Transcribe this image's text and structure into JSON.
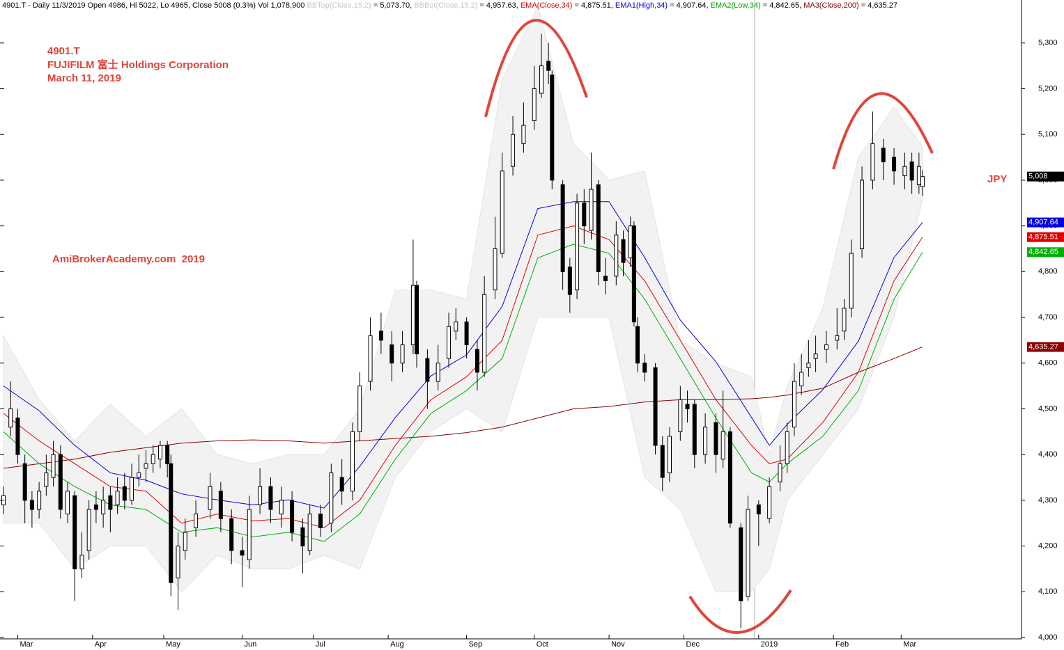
{
  "chart_data": {
    "type": "candlestick",
    "header": [
      {
        "text": "4901.T - Daily 11/3/2019 Open 4986, Hi 5022, Lo 4965, Close 5008 (0.3%) Vol 1,078,900 ",
        "color": "#000000"
      },
      {
        "text": "BBTop(Close,15,2)",
        "color": "#c8c8c8"
      },
      {
        "text": " = 5,073.70, ",
        "color": "#000000"
      },
      {
        "text": "BBBot(Close,15,2)",
        "color": "#c8c8c8"
      },
      {
        "text": " = 4,957.63, ",
        "color": "#000000"
      },
      {
        "text": "EMA(Close,34)",
        "color": "#e00000"
      },
      {
        "text": " = 4,875.51, ",
        "color": "#000000"
      },
      {
        "text": "EMA1(High,34)",
        "color": "#0000e0"
      },
      {
        "text": " = 4,907.64, ",
        "color": "#000000"
      },
      {
        "text": "EMA2(Low,34)",
        "color": "#00a000"
      },
      {
        "text": " = 4,842.65, ",
        "color": "#000000"
      },
      {
        "text": "MA3(Close,200)",
        "color": "#8b0000"
      },
      {
        "text": " = 4,635.27",
        "color": "#000000"
      }
    ],
    "annotations": [
      "4901.T",
      "FUJIFILM 富士 Holdings Corporation",
      "March 11, 2019",
      "AmiBrokerAcademy.com  2019",
      "JPY"
    ],
    "xlim": [
      0,
      285
    ],
    "xticks": [
      {
        "value": 4,
        "label": "Mar"
      },
      {
        "value": 25,
        "label": "Apr"
      },
      {
        "value": 45,
        "label": "May"
      },
      {
        "value": 67,
        "label": "Jun"
      },
      {
        "value": 87,
        "label": "Jul"
      },
      {
        "value": 108,
        "label": "Aug"
      },
      {
        "value": 130,
        "label": "Sep"
      },
      {
        "value": 149,
        "label": "Oct"
      },
      {
        "value": 170,
        "label": "Nov"
      },
      {
        "value": 191,
        "label": "Dec"
      },
      {
        "value": 212,
        "label": "2019"
      },
      {
        "value": 233,
        "label": "Feb"
      },
      {
        "value": 252,
        "label": "Mar"
      }
    ],
    "ylim": [
      3997,
      5394
    ],
    "yticks": [
      {
        "value": 4000,
        "label": "4,000"
      },
      {
        "value": 4100,
        "label": "4,100"
      },
      {
        "value": 4200,
        "label": "4,200"
      },
      {
        "value": 4300,
        "label": "4,300"
      },
      {
        "value": 4400,
        "label": "4,400"
      },
      {
        "value": 4500,
        "label": "4,500"
      },
      {
        "value": 4600,
        "label": "4,600"
      },
      {
        "value": 4700,
        "label": "4,700"
      },
      {
        "value": 4800,
        "label": "4,800"
      },
      {
        "value": 4900,
        "label": "4,900"
      },
      {
        "value": 5000,
        "label": "5,000"
      },
      {
        "value": 5100,
        "label": "5,100"
      },
      {
        "value": 5200,
        "label": "5,200"
      },
      {
        "value": 5300,
        "label": "5,300"
      }
    ],
    "candles": {
      "x": [
        0,
        2,
        4,
        6,
        8,
        10,
        12,
        14,
        16,
        18,
        20,
        22,
        24,
        26,
        28,
        30,
        32,
        34,
        36,
        38,
        40,
        42,
        44,
        46,
        47,
        49,
        51,
        54,
        58,
        61,
        64,
        67,
        69,
        72,
        75,
        78,
        81,
        84,
        86,
        89,
        92,
        95,
        98,
        100,
        103,
        106,
        109,
        112,
        115,
        116,
        119,
        122,
        125,
        127,
        130,
        133,
        135,
        138,
        140,
        143,
        146,
        149,
        151,
        153,
        154,
        157,
        159,
        161,
        163,
        165,
        167,
        169,
        172,
        174,
        176,
        177,
        178,
        180,
        183,
        185,
        187,
        190,
        192,
        194,
        197,
        200,
        202,
        204,
        207,
        209,
        212,
        215,
        218,
        220,
        222,
        224,
        226,
        228,
        231,
        234,
        236,
        238,
        241,
        244,
        247,
        250,
        253,
        255,
        257,
        258
      ],
      "open": [
        4290,
        4460,
        4480,
        4380,
        4300,
        4280,
        4330,
        4350,
        4400,
        4270,
        4310,
        4150,
        4190,
        4290,
        4270,
        4310,
        4290,
        4330,
        4300,
        4350,
        4370,
        4380,
        4390,
        4420,
        4380,
        4130,
        4190,
        4240,
        4280,
        4320,
        4260,
        4190,
        4170,
        4290,
        4330,
        4270,
        4300,
        4240,
        4190,
        4270,
        4250,
        4350,
        4320,
        4450,
        4560,
        4670,
        4640,
        4600,
        4640,
        4770,
        4610,
        4560,
        4610,
        4670,
        4690,
        4630,
        4580,
        4760,
        4840,
        5030,
        5080,
        5130,
        5190,
        5260,
        5230,
        4990,
        4810,
        4760,
        4950,
        4890,
        4990,
        4790,
        4790,
        4870,
        4830,
        4900,
        4680,
        4600,
        4590,
        4420,
        4360,
        4450,
        4510,
        4510,
        4400,
        4470,
        4390,
        4450,
        4240,
        4090,
        4290,
        4260,
        4340,
        4380,
        4460,
        4550,
        4590,
        4610,
        4630,
        4650,
        4670,
        4720,
        4850,
        5000,
        5070,
        5050,
        5010,
        5040,
        4990,
        4986
      ],
      "high": [
        4330,
        4560,
        4500,
        4400,
        4320,
        4340,
        4400,
        4430,
        4420,
        4340,
        4320,
        4230,
        4300,
        4320,
        4330,
        4330,
        4350,
        4360,
        4380,
        4400,
        4410,
        4420,
        4430,
        4430,
        4400,
        4230,
        4260,
        4300,
        4360,
        4340,
        4280,
        4220,
        4310,
        4370,
        4350,
        4330,
        4320,
        4260,
        4290,
        4290,
        4380,
        4390,
        4470,
        4580,
        4700,
        4710,
        4670,
        4670,
        4870,
        4780,
        4630,
        4640,
        4710,
        4720,
        4700,
        4650,
        4790,
        4920,
        5060,
        5140,
        5170,
        5250,
        5320,
        5300,
        5240,
        5000,
        4830,
        4970,
        4980,
        5060,
        5000,
        4830,
        4910,
        4890,
        4920,
        4910,
        4700,
        4620,
        4600,
        4440,
        4460,
        4550,
        4540,
        4520,
        4490,
        4490,
        4540,
        4460,
        4250,
        4310,
        4300,
        4350,
        4420,
        4470,
        4600,
        4620,
        4650,
        4660,
        4670,
        4720,
        4740,
        4870,
        5030,
        5150,
        5090,
        5070,
        5060,
        5060,
        5060,
        5022
      ],
      "low": [
        4270,
        4440,
        4380,
        4250,
        4240,
        4260,
        4310,
        4330,
        4260,
        4250,
        4080,
        4130,
        4170,
        4250,
        4240,
        4230,
        4270,
        4280,
        4290,
        4330,
        4340,
        4360,
        4370,
        4350,
        4090,
        4060,
        4170,
        4220,
        4260,
        4230,
        4160,
        4110,
        4150,
        4270,
        4250,
        4240,
        4210,
        4140,
        4180,
        4220,
        4230,
        4290,
        4300,
        4430,
        4540,
        4620,
        4560,
        4580,
        4620,
        4590,
        4500,
        4540,
        4590,
        4650,
        4610,
        4540,
        4570,
        4740,
        4830,
        5010,
        5060,
        5110,
        5180,
        5210,
        4980,
        4760,
        4710,
        4740,
        4860,
        4870,
        4770,
        4750,
        4770,
        4790,
        4810,
        4680,
        4580,
        4560,
        4400,
        4320,
        4340,
        4430,
        4470,
        4370,
        4380,
        4360,
        4370,
        4240,
        4020,
        4080,
        4200,
        4250,
        4320,
        4360,
        4440,
        4530,
        4570,
        4580,
        4600,
        4630,
        4650,
        4700,
        4830,
        4980,
        5000,
        4990,
        4980,
        4970,
        4970,
        4965
      ],
      "close": [
        4310,
        4500,
        4400,
        4300,
        4280,
        4320,
        4360,
        4400,
        4280,
        4320,
        4150,
        4180,
        4280,
        4280,
        4300,
        4280,
        4320,
        4300,
        4350,
        4360,
        4380,
        4400,
        4420,
        4380,
        4120,
        4200,
        4230,
        4270,
        4330,
        4260,
        4190,
        4180,
        4280,
        4330,
        4280,
        4300,
        4230,
        4200,
        4270,
        4240,
        4360,
        4320,
        4450,
        4550,
        4660,
        4650,
        4600,
        4640,
        4770,
        4620,
        4560,
        4600,
        4680,
        4690,
        4640,
        4580,
        4750,
        4850,
        5020,
        5100,
        5120,
        5200,
        5250,
        5240,
        5000,
        4800,
        4750,
        4950,
        4900,
        4980,
        4800,
        4780,
        4880,
        4820,
        4900,
        4690,
        4600,
        4580,
        4420,
        4350,
        4440,
        4520,
        4500,
        4400,
        4460,
        4400,
        4450,
        4250,
        4080,
        4280,
        4270,
        4330,
        4380,
        4450,
        4560,
        4580,
        4600,
        4620,
        4640,
        4660,
        4720,
        4840,
        5000,
        5080,
        5040,
        5020,
        5030,
        5000,
        5030,
        5008
      ],
      "last_label": "5,008",
      "up_color": "#ffffff",
      "down_color": "#000000"
    },
    "line_x": [
      0,
      10,
      20,
      30,
      40,
      50,
      60,
      70,
      80,
      90,
      100,
      110,
      120,
      130,
      140,
      150,
      160,
      170,
      180,
      190,
      200,
      210,
      215,
      220,
      230,
      240,
      250,
      258
    ],
    "band": {
      "color": "#f2f2f2",
      "upper": [
        4660,
        4520,
        4430,
        4510,
        4440,
        4500,
        4400,
        4380,
        4400,
        4400,
        4500,
        4760,
        4760,
        4740,
        5220,
        5380,
        5080,
        5000,
        5020,
        4650,
        4600,
        4570,
        4400,
        4550,
        4720,
        5050,
        5160,
        5073.7
      ],
      "lower": [
        4250,
        4250,
        4150,
        4200,
        4200,
        4100,
        4180,
        4150,
        4150,
        4180,
        4150,
        4350,
        4450,
        4500,
        4450,
        4700,
        4700,
        4700,
        4350,
        4280,
        4100,
        4100,
        4150,
        4300,
        4400,
        4500,
        4700,
        4957.63
      ]
    },
    "series": [
      {
        "name": "MA3(Close,200)",
        "color": "#8b0000",
        "last_label": "4,635.27",
        "values": [
          4370,
          4380,
          4390,
          4405,
          4415,
          4425,
          4430,
          4432,
          4430,
          4425,
          4430,
          4435,
          4440,
          4448,
          4460,
          4480,
          4500,
          4505,
          4515,
          4520,
          4520,
          4522,
          4525,
          4530,
          4545,
          4580,
          4610,
          4635.27
        ]
      },
      {
        "name": "EMA2(Low,34)",
        "color": "#00b000",
        "last_label": "4,842.65",
        "values": [
          4450,
          4380,
          4330,
          4290,
          4280,
          4230,
          4240,
          4220,
          4230,
          4210,
          4270,
          4390,
          4490,
          4540,
          4610,
          4830,
          4860,
          4840,
          4740,
          4610,
          4480,
          4360,
          4340,
          4380,
          4440,
          4540,
          4740,
          4842.65
        ]
      },
      {
        "name": "EMA(Close,34)",
        "color": "#e00000",
        "last_label": "4,875.51",
        "values": [
          4490,
          4430,
          4380,
          4330,
          4320,
          4250,
          4270,
          4255,
          4260,
          4240,
          4300,
          4420,
          4520,
          4570,
          4650,
          4880,
          4900,
          4870,
          4780,
          4650,
          4520,
          4420,
          4380,
          4390,
          4470,
          4580,
          4780,
          4875.51
        ]
      },
      {
        "name": "EMA1(High,34)",
        "color": "#0000e0",
        "last_label": "4,907.64",
        "values": [
          4550,
          4496,
          4420,
          4360,
          4344,
          4314,
          4301,
          4290,
          4301,
          4283,
          4374,
          4481,
          4572,
          4618,
          4724,
          4938,
          4953,
          4953,
          4831,
          4694,
          4603,
          4481,
          4420,
          4466,
          4542,
          4648,
          4831,
          4907.64
        ]
      }
    ]
  }
}
